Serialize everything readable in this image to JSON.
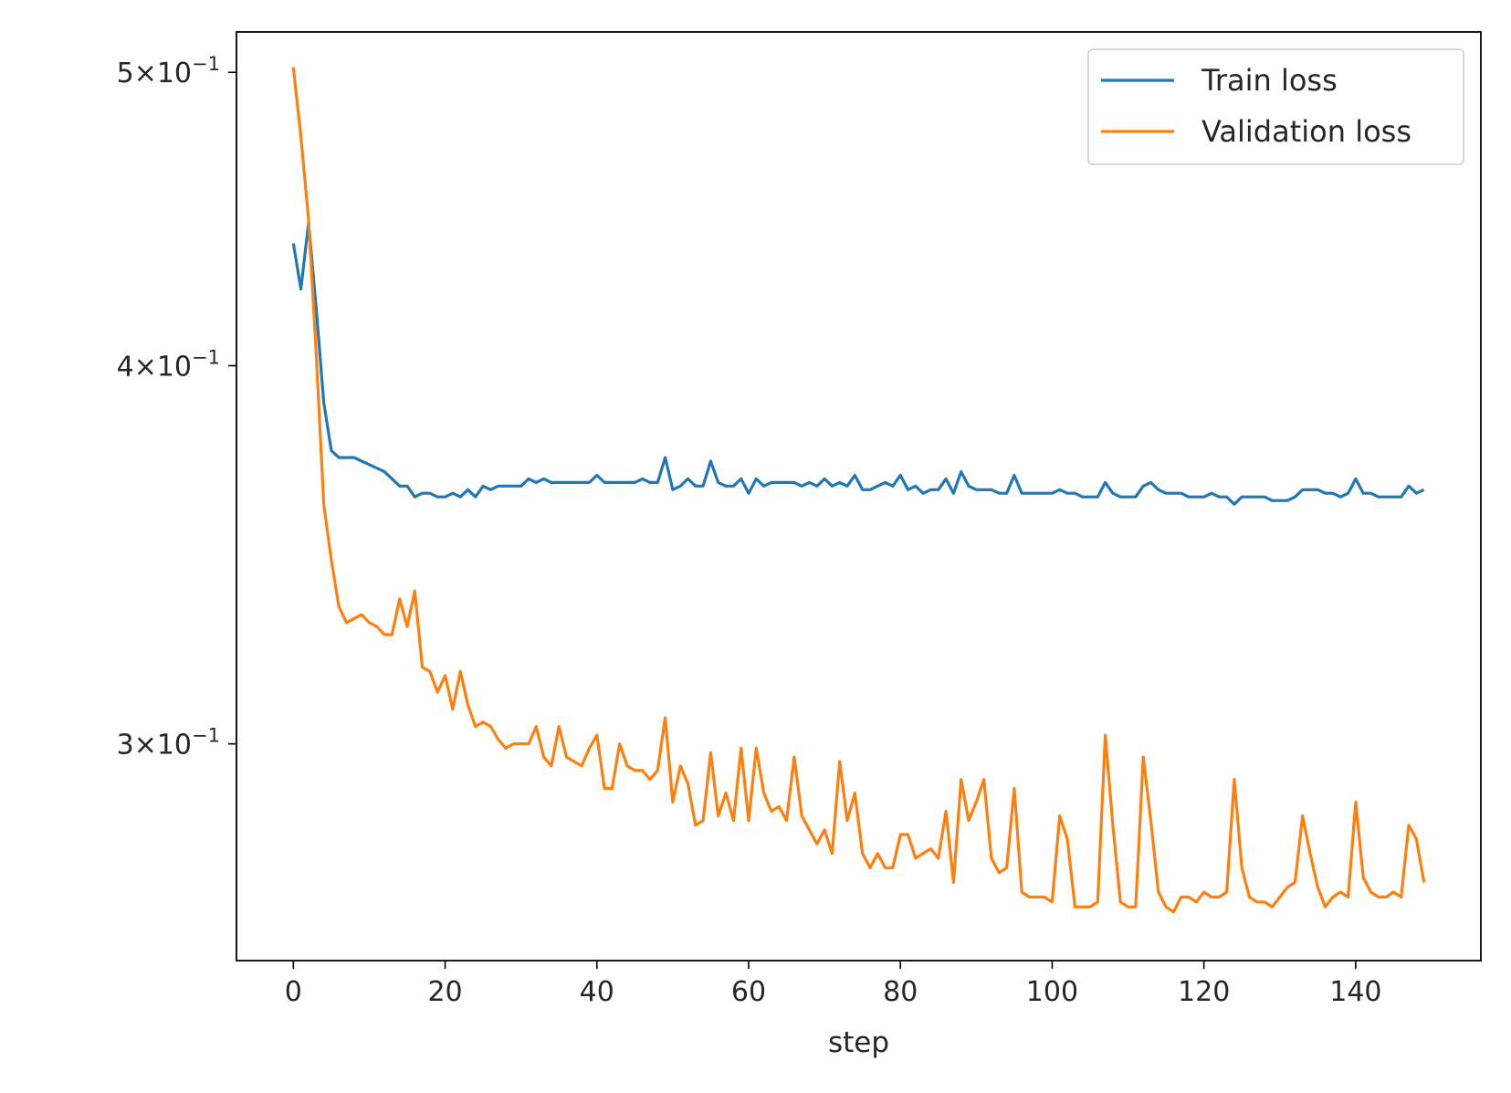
{
  "chart_data": {
    "type": "line",
    "xlabel": "step",
    "ylabel": "",
    "title": "",
    "x_scale": "linear",
    "y_scale": "log",
    "xlim": [
      -7.5,
      156.5
    ],
    "ylim": [
      0.2544,
      0.5156
    ],
    "x_ticks": [
      0,
      20,
      40,
      60,
      80,
      100,
      120,
      140
    ],
    "x_tick_labels": [
      "0",
      "20",
      "40",
      "60",
      "80",
      "100",
      "120",
      "140"
    ],
    "y_ticks": [
      {
        "value": 0.5,
        "mantissa": "5",
        "base": "10",
        "exponent": "−1"
      },
      {
        "value": 0.4,
        "mantissa": "4",
        "base": "10",
        "exponent": "−1"
      },
      {
        "value": 0.3,
        "mantissa": "3",
        "base": "10",
        "exponent": "−1"
      }
    ],
    "grid": false,
    "legend_position": "top-right",
    "series": [
      {
        "name": "Train loss",
        "color": "#1f77b4",
        "x_start": 0,
        "values": [
          0.439,
          0.424,
          0.446,
          0.418,
          0.389,
          0.375,
          0.373,
          0.373,
          0.373,
          0.372,
          0.371,
          0.37,
          0.369,
          0.367,
          0.365,
          0.365,
          0.362,
          0.363,
          0.363,
          0.362,
          0.362,
          0.363,
          0.362,
          0.364,
          0.362,
          0.365,
          0.364,
          0.365,
          0.365,
          0.365,
          0.365,
          0.367,
          0.366,
          0.367,
          0.366,
          0.366,
          0.366,
          0.366,
          0.366,
          0.366,
          0.368,
          0.366,
          0.366,
          0.366,
          0.366,
          0.366,
          0.367,
          0.366,
          0.366,
          0.373,
          0.364,
          0.365,
          0.367,
          0.365,
          0.365,
          0.372,
          0.366,
          0.365,
          0.365,
          0.367,
          0.363,
          0.367,
          0.365,
          0.366,
          0.366,
          0.366,
          0.366,
          0.365,
          0.366,
          0.365,
          0.367,
          0.365,
          0.366,
          0.365,
          0.368,
          0.364,
          0.364,
          0.365,
          0.366,
          0.365,
          0.368,
          0.364,
          0.365,
          0.363,
          0.364,
          0.364,
          0.367,
          0.363,
          0.369,
          0.365,
          0.364,
          0.364,
          0.364,
          0.363,
          0.363,
          0.368,
          0.363,
          0.363,
          0.363,
          0.363,
          0.363,
          0.364,
          0.363,
          0.363,
          0.362,
          0.362,
          0.362,
          0.366,
          0.363,
          0.362,
          0.362,
          0.362,
          0.365,
          0.366,
          0.364,
          0.363,
          0.363,
          0.363,
          0.362,
          0.362,
          0.362,
          0.363,
          0.362,
          0.362,
          0.36,
          0.362,
          0.362,
          0.362,
          0.362,
          0.361,
          0.361,
          0.361,
          0.362,
          0.364,
          0.364,
          0.364,
          0.363,
          0.363,
          0.362,
          0.363,
          0.367,
          0.363,
          0.363,
          0.362,
          0.362,
          0.362,
          0.362,
          0.365,
          0.363,
          0.364
        ]
      },
      {
        "name": "Validation loss",
        "color": "#ff7f0e",
        "x_start": 0,
        "values": [
          0.502,
          0.476,
          0.447,
          0.404,
          0.36,
          0.345,
          0.333,
          0.329,
          0.33,
          0.331,
          0.329,
          0.328,
          0.326,
          0.326,
          0.335,
          0.328,
          0.337,
          0.318,
          0.317,
          0.312,
          0.316,
          0.308,
          0.317,
          0.309,
          0.304,
          0.305,
          0.304,
          0.301,
          0.299,
          0.3,
          0.3,
          0.3,
          0.304,
          0.297,
          0.295,
          0.304,
          0.297,
          0.296,
          0.295,
          0.299,
          0.302,
          0.29,
          0.29,
          0.3,
          0.295,
          0.294,
          0.294,
          0.292,
          0.294,
          0.306,
          0.287,
          0.295,
          0.291,
          0.282,
          0.283,
          0.298,
          0.284,
          0.289,
          0.283,
          0.299,
          0.283,
          0.299,
          0.289,
          0.285,
          0.286,
          0.283,
          0.297,
          0.284,
          0.281,
          0.278,
          0.281,
          0.276,
          0.296,
          0.283,
          0.289,
          0.276,
          0.273,
          0.276,
          0.273,
          0.273,
          0.28,
          0.28,
          0.275,
          0.276,
          0.277,
          0.275,
          0.285,
          0.27,
          0.292,
          0.283,
          0.287,
          0.292,
          0.275,
          0.272,
          0.273,
          0.29,
          0.268,
          0.267,
          0.267,
          0.267,
          0.266,
          0.284,
          0.279,
          0.265,
          0.265,
          0.265,
          0.266,
          0.302,
          0.282,
          0.266,
          0.265,
          0.265,
          0.297,
          0.283,
          0.268,
          0.265,
          0.264,
          0.267,
          0.267,
          0.266,
          0.268,
          0.267,
          0.267,
          0.268,
          0.292,
          0.273,
          0.267,
          0.266,
          0.266,
          0.265,
          0.267,
          0.269,
          0.27,
          0.284,
          0.276,
          0.269,
          0.265,
          0.267,
          0.268,
          0.267,
          0.287,
          0.271,
          0.268,
          0.267,
          0.267,
          0.268,
          0.267,
          0.282,
          0.279,
          0.27
        ]
      }
    ]
  }
}
